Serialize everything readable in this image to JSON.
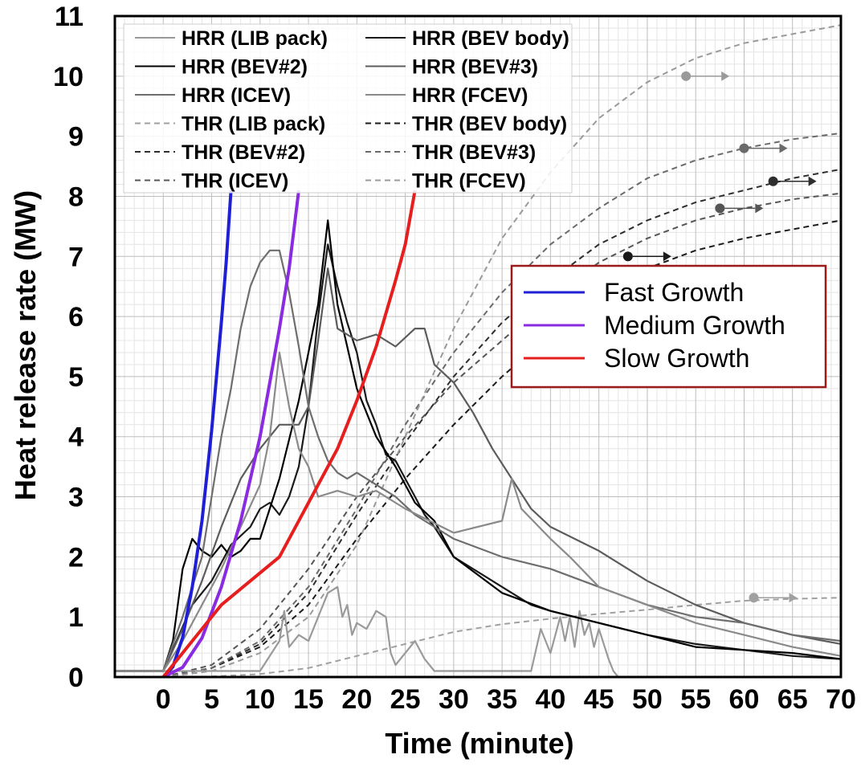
{
  "chart_data": {
    "type": "line",
    "xlabel": "Time (minute)",
    "ylabel": "Heat release rate (MW)",
    "xlim": [
      -5,
      70
    ],
    "ylim": [
      0,
      11
    ],
    "xticks": [
      "0",
      "5",
      "10",
      "15",
      "20",
      "25",
      "30",
      "35",
      "40",
      "45",
      "50",
      "55",
      "60",
      "65",
      "70"
    ],
    "yticks": [
      "0",
      "1",
      "2",
      "3",
      "4",
      "5",
      "6",
      "7",
      "8",
      "9",
      "10",
      "11"
    ],
    "grid": true,
    "legend_position": "top-left",
    "legend": [
      "HRR (LIB pack)",
      "HRR (BEV body)",
      "HRR (BEV#2)",
      "HRR (BEV#3)",
      "HRR (ICEV)",
      "HRR (FCEV)",
      "THR (LIB pack)",
      "THR (BEV body)",
      "THR (BEV#2)",
      "THR (BEV#3)",
      "THR (ICEV)",
      "THR (FCEV)"
    ],
    "series": [
      {
        "name": "HRR (LIB pack)",
        "style": "solid",
        "color": "#9a9a9a",
        "x": [
          -5,
          0,
          10,
          12,
          12.5,
          13,
          14,
          15,
          17,
          18,
          18.5,
          19,
          19.5,
          20,
          21,
          22,
          23,
          23.5,
          24,
          26,
          27,
          28,
          30,
          32,
          35,
          37,
          38,
          39,
          40,
          41,
          41.5,
          42,
          42.5,
          43,
          43.5,
          44,
          44.5,
          45,
          46,
          46.5,
          47,
          70
        ],
        "y": [
          0.1,
          0.1,
          0.1,
          0.6,
          1.1,
          0.5,
          0.7,
          0.6,
          1.4,
          1.5,
          1.0,
          1.2,
          0.7,
          0.9,
          0.8,
          1.1,
          1.0,
          0.4,
          0.2,
          0.6,
          0.3,
          0.1,
          0.1,
          0.1,
          0.1,
          0.1,
          0.1,
          0.8,
          0.4,
          1.0,
          0.6,
          1.0,
          0.5,
          1.1,
          0.7,
          0.9,
          0.5,
          0.8,
          0.3,
          0.1,
          0.0,
          0.0
        ]
      },
      {
        "name": "HRR (BEV body)",
        "style": "solid",
        "color": "#1a1a1a",
        "x": [
          -5,
          0,
          3,
          5,
          7,
          9,
          10,
          11,
          12,
          13,
          14,
          15,
          16,
          17,
          18,
          19,
          20,
          21,
          22,
          23,
          24,
          25,
          26,
          27,
          28,
          30,
          33,
          35,
          38,
          40,
          45,
          50,
          55,
          60,
          65,
          70
        ],
        "y": [
          0.1,
          0.1,
          1.2,
          1.6,
          2.2,
          2.5,
          2.8,
          2.9,
          2.7,
          3.0,
          3.5,
          4.5,
          6.0,
          7.2,
          6.5,
          5.9,
          5.4,
          4.6,
          4.2,
          3.7,
          3.6,
          3.3,
          3.0,
          2.7,
          2.5,
          2.0,
          1.7,
          1.5,
          1.2,
          1.1,
          0.9,
          0.7,
          0.55,
          0.45,
          0.35,
          0.3
        ]
      },
      {
        "name": "HRR (BEV#2)",
        "style": "solid",
        "color": "#000000",
        "x": [
          -5,
          0,
          1,
          2,
          3,
          4,
          5,
          6,
          7,
          8,
          9,
          10,
          12,
          14,
          16,
          17,
          18,
          19,
          20,
          22,
          24,
          26,
          28,
          30,
          35,
          40,
          45,
          50,
          55,
          60,
          65,
          70
        ],
        "y": [
          0.1,
          0.1,
          0.6,
          1.8,
          2.3,
          2.1,
          2.0,
          2.2,
          2.0,
          2.1,
          2.3,
          2.3,
          3.3,
          4.6,
          6.2,
          7.6,
          6.2,
          5.5,
          4.8,
          4.0,
          3.5,
          2.9,
          2.6,
          2.0,
          1.4,
          1.1,
          0.9,
          0.7,
          0.5,
          0.45,
          0.4,
          0.3
        ]
      },
      {
        "name": "HRR (BEV#3)",
        "style": "solid",
        "color": "#5c5c5c",
        "x": [
          -5,
          0,
          2,
          4,
          6,
          8,
          10,
          12,
          14,
          15,
          16,
          17,
          18,
          20,
          22,
          24,
          26,
          27,
          28,
          30,
          32,
          34,
          36,
          38,
          40,
          45,
          50,
          55,
          60,
          65,
          70
        ],
        "y": [
          0.1,
          0.1,
          0.8,
          1.6,
          2.5,
          3.3,
          3.8,
          4.2,
          4.2,
          4.5,
          5.6,
          6.8,
          5.8,
          5.6,
          5.7,
          5.5,
          5.8,
          5.8,
          5.2,
          4.9,
          4.4,
          3.8,
          3.3,
          2.8,
          2.5,
          2.1,
          1.6,
          1.2,
          0.9,
          0.7,
          0.55
        ]
      },
      {
        "name": "HRR (ICEV)",
        "style": "solid",
        "color": "#6e6e6e",
        "x": [
          -5,
          0,
          2,
          4,
          5,
          6,
          7,
          8,
          9,
          10,
          11,
          12,
          13,
          14,
          15,
          16,
          17,
          18,
          19,
          20,
          22,
          24,
          26,
          28,
          30,
          35,
          40,
          45,
          50,
          55,
          60,
          65,
          70
        ],
        "y": [
          0.1,
          0.1,
          1.0,
          2.0,
          3.0,
          4.0,
          4.8,
          5.8,
          6.5,
          6.9,
          7.1,
          7.1,
          6.4,
          5.5,
          4.5,
          4.0,
          3.6,
          3.4,
          3.3,
          3.4,
          3.2,
          3.0,
          2.7,
          2.5,
          2.3,
          2.0,
          1.8,
          1.5,
          1.2,
          1.0,
          0.9,
          0.7,
          0.6
        ]
      },
      {
        "name": "HRR (FCEV)",
        "style": "solid",
        "color": "#8a8a8a",
        "x": [
          -5,
          0,
          2,
          4,
          6,
          8,
          10,
          11,
          12,
          13,
          14,
          15,
          16,
          18,
          20,
          22,
          25,
          30,
          35,
          36,
          37,
          40,
          42,
          45,
          50,
          55,
          60,
          65,
          70
        ],
        "y": [
          0.1,
          0.1,
          0.6,
          1.2,
          1.8,
          2.5,
          3.2,
          4.0,
          5.4,
          4.5,
          3.8,
          3.5,
          3.0,
          3.1,
          3.0,
          3.1,
          2.8,
          2.4,
          2.6,
          3.3,
          2.8,
          2.3,
          2.0,
          1.5,
          1.2,
          0.9,
          0.7,
          0.5,
          0.35
        ]
      },
      {
        "name": "THR (LIB pack)",
        "style": "dashed",
        "color": "#a0a0a0",
        "x": [
          -5,
          0,
          5,
          10,
          15,
          20,
          25,
          30,
          35,
          40,
          45,
          50,
          55,
          60,
          65,
          70
        ],
        "y": [
          0.0,
          0.0,
          0.01,
          0.05,
          0.15,
          0.35,
          0.55,
          0.75,
          0.88,
          0.97,
          1.05,
          1.12,
          1.2,
          1.27,
          1.3,
          1.32
        ],
        "marker": {
          "x": 61,
          "y": 1.32,
          "label": "",
          "arrow": true
        }
      },
      {
        "name": "THR (BEV body)",
        "style": "dashed",
        "color": "#1a1a1a",
        "x": [
          -5,
          0,
          5,
          10,
          15,
          20,
          25,
          30,
          35,
          40,
          45,
          50,
          55,
          60,
          65,
          70
        ],
        "y": [
          0.0,
          0.0,
          0.15,
          0.5,
          1.2,
          2.3,
          3.3,
          4.2,
          5.0,
          5.7,
          6.3,
          6.8,
          7.1,
          7.3,
          7.45,
          7.6
        ],
        "marker": {
          "x": 48,
          "y": 7.0,
          "arrow": true
        }
      },
      {
        "name": "THR (BEV#2)",
        "style": "dashed",
        "color": "#2e2e2e",
        "x": [
          -5,
          0,
          5,
          10,
          15,
          20,
          25,
          30,
          35,
          40,
          45,
          50,
          55,
          60,
          65,
          70
        ],
        "y": [
          0.0,
          0.0,
          0.15,
          0.55,
          1.4,
          2.7,
          3.9,
          5.0,
          5.9,
          6.6,
          7.2,
          7.6,
          7.9,
          8.1,
          8.3,
          8.45
        ],
        "marker": {
          "x": 63,
          "y": 8.25,
          "arrow": true
        }
      },
      {
        "name": "THR (BEV#3)",
        "style": "dashed",
        "color": "#6a6a6a",
        "x": [
          -5,
          0,
          5,
          10,
          15,
          20,
          25,
          30,
          35,
          40,
          45,
          50,
          55,
          60,
          65,
          70
        ],
        "y": [
          0.0,
          0.0,
          0.15,
          0.6,
          1.5,
          2.8,
          4.2,
          5.4,
          6.4,
          7.2,
          7.8,
          8.3,
          8.6,
          8.8,
          8.95,
          9.05
        ],
        "marker": {
          "x": 60,
          "y": 8.8,
          "arrow": true
        }
      },
      {
        "name": "THR (ICEV)",
        "style": "dashed",
        "color": "#555555",
        "x": [
          -5,
          0,
          5,
          10,
          15,
          20,
          25,
          30,
          35,
          40,
          45,
          50,
          55,
          60,
          65,
          70
        ],
        "y": [
          0.0,
          0.0,
          0.2,
          0.8,
          1.8,
          3.0,
          4.0,
          4.9,
          5.6,
          6.3,
          6.9,
          7.3,
          7.6,
          7.8,
          7.95,
          8.05
        ],
        "marker": {
          "x": 57.5,
          "y": 7.8,
          "arrow": true
        }
      },
      {
        "name": "THR (FCEV)",
        "style": "dashed",
        "color": "#9a9a9a",
        "x": [
          -5,
          0,
          5,
          10,
          15,
          20,
          25,
          30,
          35,
          40,
          45,
          50,
          55,
          60,
          65,
          70
        ],
        "y": [
          0.0,
          0.0,
          0.1,
          0.4,
          1.0,
          2.2,
          4.0,
          5.8,
          7.3,
          8.4,
          9.3,
          9.9,
          10.3,
          10.55,
          10.7,
          10.85
        ],
        "marker": {
          "x": 54,
          "y": 10.0,
          "arrow": true
        }
      }
    ],
    "growth_legend": [
      "Fast Growth",
      "Medium Growth",
      "Slow Growth"
    ],
    "growth_series": [
      {
        "name": "Fast Growth",
        "color": "#1f1fd6",
        "x": [
          0,
          1,
          2,
          3,
          4,
          5,
          6,
          6.5,
          7
        ],
        "y": [
          0.0,
          0.17,
          0.66,
          1.5,
          2.6,
          4.1,
          5.9,
          6.9,
          8.1
        ]
      },
      {
        "name": "Medium Growth",
        "color": "#8a2be2",
        "x": [
          0,
          2,
          4,
          6,
          8,
          10,
          11,
          12,
          13,
          14
        ],
        "y": [
          0.0,
          0.16,
          0.65,
          1.5,
          2.6,
          4.0,
          4.9,
          5.8,
          6.8,
          8.1
        ]
      },
      {
        "name": "Slow Growth",
        "color": "#e61e1e",
        "x": [
          0,
          3,
          6,
          9,
          12,
          15,
          18,
          20,
          22,
          24,
          25,
          26
        ],
        "y": [
          0.0,
          0.6,
          1.2,
          1.6,
          2.0,
          2.9,
          3.8,
          4.6,
          5.5,
          6.6,
          7.2,
          8.1
        ]
      }
    ]
  }
}
